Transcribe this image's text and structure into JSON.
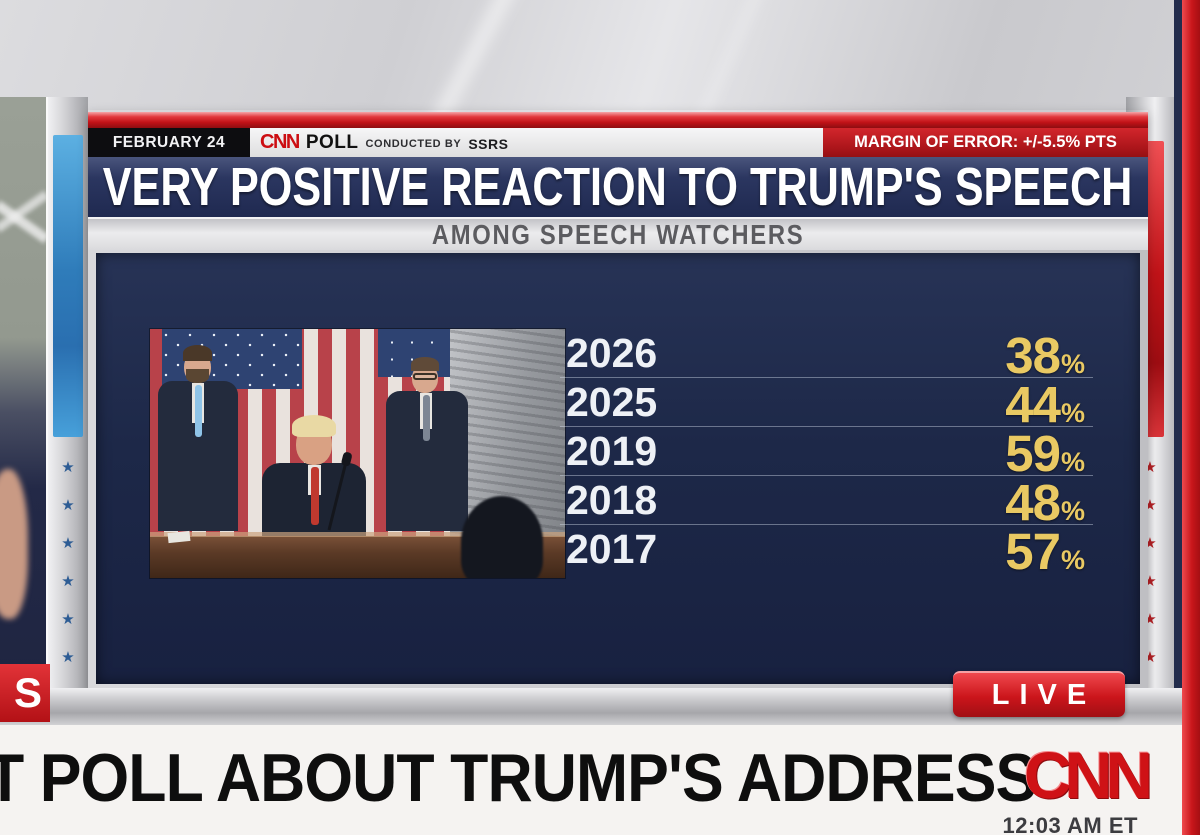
{
  "colors": {
    "navy": "#1d2848",
    "cnn_red": "#cc0d12",
    "gold": "#e9c963",
    "silver": "#c9c9cd"
  },
  "top_bar": {
    "date": "FEBRUARY 24",
    "brand": "CNN",
    "poll_label": "POLL",
    "conducted_by": "CONDUCTED BY",
    "pollster": "SSRS",
    "margin_of_error": "MARGIN OF ERROR: +/-5.5% PTS"
  },
  "headline": "VERY POSITIVE REACTION TO TRUMP'S SPEECH",
  "subtitle": "AMONG SPEECH WATCHERS",
  "chart_data": {
    "type": "table",
    "title": "VERY POSITIVE REACTION TO TRUMP'S SPEECH",
    "subtitle": "AMONG SPEECH WATCHERS",
    "categories": [
      "2026",
      "2025",
      "2019",
      "2018",
      "2017"
    ],
    "values": [
      38,
      44,
      59,
      48,
      57
    ],
    "unit": "%",
    "source": "CNN POLL CONDUCTED BY SSRS",
    "date": "FEBRUARY 24",
    "margin_of_error_pts": 5.5
  },
  "photo_alt": "Trump speaking at podium before Congress, Vance and Johnson applauding, US flag backdrop",
  "live_badge": "LIVE",
  "chyron": {
    "headline": "T POLL ABOUT TRUMP'S ADDRESS",
    "brand": "CNN",
    "time": "12:03 AM ET",
    "left_tag": "S"
  },
  "decor": {
    "star_glyph": "★",
    "left_stars": 6,
    "right_stars": 6
  }
}
